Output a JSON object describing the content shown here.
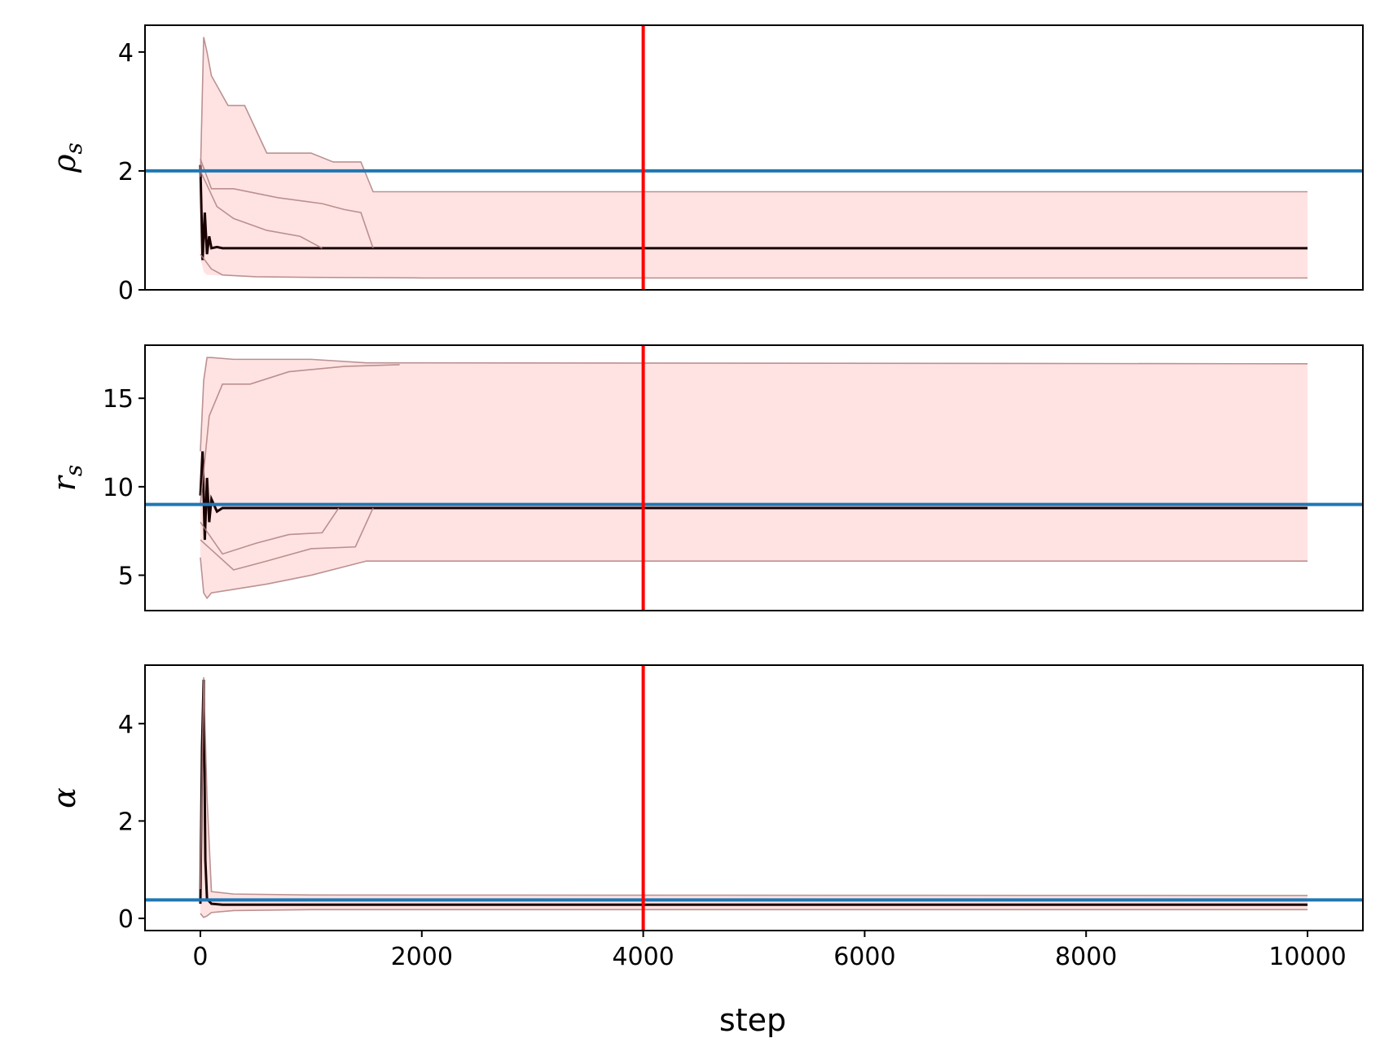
{
  "chart_data": [
    {
      "type": "line",
      "ylabel": "ρs",
      "ylabel_base": "ρ",
      "ylabel_sub": "s",
      "xlim": [
        -500,
        10500
      ],
      "ylim": [
        0,
        4.45
      ],
      "yticks": [
        0,
        2,
        4
      ],
      "xticks": [],
      "grid": false,
      "reference_lines": {
        "vertical": {
          "x": 4000,
          "color": "#ff0000"
        },
        "horizontal": {
          "y": 2.0,
          "color": "#1f77b4"
        }
      },
      "band": {
        "color": "#ffe3e3",
        "x": [
          0,
          30,
          60,
          100,
          250,
          400,
          600,
          1000,
          1200,
          1450,
          1560,
          2000,
          4000,
          10000
        ],
        "upper": [
          1.9,
          4.25,
          4.0,
          3.6,
          3.1,
          3.1,
          2.3,
          2.3,
          2.15,
          2.15,
          1.65,
          1.65,
          1.65,
          1.65
        ],
        "lower": [
          0.55,
          0.3,
          0.25,
          0.25,
          0.23,
          0.22,
          0.22,
          0.21,
          0.21,
          0.21,
          0.21,
          0.2,
          0.2,
          0.2
        ]
      },
      "series": [
        {
          "role": "median-chain",
          "color": "#1a0000",
          "x": [
            0,
            20,
            40,
            60,
            80,
            100,
            150,
            200,
            10000
          ],
          "y": [
            2.1,
            0.5,
            1.3,
            0.6,
            0.9,
            0.7,
            0.72,
            0.7,
            0.7
          ]
        },
        {
          "role": "walker",
          "color": "#b08080",
          "x": [
            0,
            30,
            60,
            100,
            250,
            400,
            600,
            1000,
            1200,
            1450,
            1560,
            10000
          ],
          "y": [
            1.9,
            4.25,
            4.0,
            3.6,
            3.1,
            3.1,
            2.3,
            2.3,
            2.15,
            2.15,
            1.65,
            1.65
          ]
        },
        {
          "role": "walker",
          "color": "#b08080",
          "x": [
            0,
            100,
            300,
            700,
            1100,
            1300,
            1450,
            1560
          ],
          "y": [
            2.2,
            1.7,
            1.7,
            1.55,
            1.45,
            1.35,
            1.3,
            0.7
          ]
        },
        {
          "role": "walker",
          "color": "#b08080",
          "x": [
            0,
            150,
            300,
            600,
            900,
            1100
          ],
          "y": [
            2.0,
            1.4,
            1.2,
            1.0,
            0.9,
            0.7
          ]
        },
        {
          "role": "walker",
          "color": "#b08080",
          "x": [
            0,
            100,
            200,
            500,
            1000,
            2000,
            10000
          ],
          "y": [
            0.6,
            0.35,
            0.25,
            0.22,
            0.21,
            0.2,
            0.2
          ]
        }
      ]
    },
    {
      "type": "line",
      "ylabel": "rs",
      "ylabel_base": "r",
      "ylabel_sub": "s",
      "xlim": [
        -500,
        10500
      ],
      "ylim": [
        3,
        18
      ],
      "yticks": [
        5,
        10,
        15
      ],
      "xticks": [],
      "grid": false,
      "reference_lines": {
        "vertical": {
          "x": 4000,
          "color": "#ff0000"
        },
        "horizontal": {
          "y": 9.0,
          "color": "#1f77b4"
        }
      },
      "band": {
        "color": "#ffe3e3",
        "x": [
          0,
          30,
          60,
          100,
          300,
          600,
          1000,
          1500,
          2000,
          4000,
          10000
        ],
        "upper": [
          12.0,
          16.0,
          17.3,
          17.3,
          17.2,
          17.2,
          17.2,
          17.0,
          17.0,
          17.0,
          16.95
        ],
        "lower": [
          6.0,
          4.0,
          3.7,
          4.0,
          4.2,
          4.5,
          5.0,
          5.8,
          5.8,
          5.8,
          5.8
        ]
      },
      "series": [
        {
          "role": "median-chain",
          "color": "#1a0000",
          "x": [
            0,
            20,
            40,
            60,
            80,
            100,
            150,
            200,
            10000
          ],
          "y": [
            9.5,
            12.0,
            7.0,
            10.5,
            8.0,
            9.3,
            8.6,
            8.8,
            8.8
          ]
        },
        {
          "role": "walker",
          "color": "#b08080",
          "x": [
            0,
            30,
            60,
            100,
            300,
            600,
            1000,
            1500,
            2000,
            10000
          ],
          "y": [
            12.0,
            16.0,
            17.3,
            17.3,
            17.2,
            17.2,
            17.2,
            17.0,
            17.0,
            16.95
          ]
        },
        {
          "role": "walker",
          "color": "#b08080",
          "x": [
            0,
            80,
            200,
            450,
            800,
            1300,
            1800
          ],
          "y": [
            9.0,
            14.0,
            15.8,
            15.8,
            16.5,
            16.8,
            16.9
          ]
        },
        {
          "role": "walker",
          "color": "#b08080",
          "x": [
            0,
            200,
            500,
            800,
            1100,
            1250
          ],
          "y": [
            8.0,
            6.2,
            6.8,
            7.3,
            7.4,
            8.8
          ]
        },
        {
          "role": "walker",
          "color": "#b08080",
          "x": [
            0,
            300,
            600,
            1000,
            1400,
            1560
          ],
          "y": [
            7.0,
            5.3,
            5.8,
            6.5,
            6.6,
            8.8
          ]
        },
        {
          "role": "walker",
          "color": "#b08080",
          "x": [
            0,
            30,
            60,
            100,
            300,
            600,
            1000,
            1500,
            2000,
            10000
          ],
          "y": [
            6.0,
            4.0,
            3.7,
            4.0,
            4.2,
            4.5,
            5.0,
            5.8,
            5.8,
            5.8
          ]
        }
      ]
    },
    {
      "type": "line",
      "ylabel": "α",
      "ylabel_base": "α",
      "ylabel_sub": "",
      "xlabel": "step",
      "xlim": [
        -500,
        10500
      ],
      "ylim": [
        -0.25,
        5.2
      ],
      "yticks": [
        0,
        2,
        4
      ],
      "xticks": [
        0,
        2000,
        4000,
        6000,
        8000,
        10000
      ],
      "grid": false,
      "reference_lines": {
        "vertical": {
          "x": 4000,
          "color": "#ff0000"
        },
        "horizontal": {
          "y": 0.38,
          "color": "#1f77b4"
        }
      },
      "band": {
        "color": "#ffe3e3",
        "x": [
          0,
          30,
          60,
          100,
          300,
          1000,
          10000
        ],
        "upper": [
          0.6,
          4.95,
          2.5,
          0.55,
          0.5,
          0.48,
          0.47
        ],
        "lower": [
          0.1,
          0.02,
          0.05,
          0.12,
          0.16,
          0.18,
          0.18
        ]
      },
      "series": [
        {
          "role": "median-chain",
          "color": "#1a0000",
          "x": [
            0,
            15,
            30,
            45,
            60,
            80,
            100,
            200,
            10000
          ],
          "y": [
            0.3,
            3.5,
            4.9,
            1.2,
            0.4,
            0.35,
            0.3,
            0.28,
            0.28
          ]
        },
        {
          "role": "walker",
          "color": "#b08080",
          "x": [
            0,
            30,
            60,
            100,
            300,
            1000,
            10000
          ],
          "y": [
            0.6,
            4.95,
            2.5,
            0.55,
            0.5,
            0.48,
            0.47
          ]
        },
        {
          "role": "walker",
          "color": "#b08080",
          "x": [
            0,
            30,
            60,
            100,
            300,
            1000,
            10000
          ],
          "y": [
            0.1,
            0.02,
            0.05,
            0.12,
            0.16,
            0.18,
            0.18
          ]
        }
      ]
    }
  ]
}
